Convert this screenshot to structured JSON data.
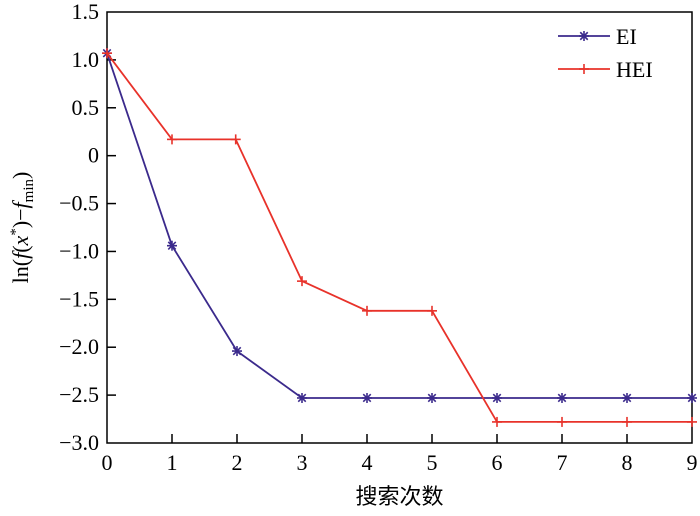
{
  "chart_data": {
    "type": "line",
    "title": "",
    "xlabel": "搜索次数",
    "ylabel": "ln(f(x*)−f_min)",
    "ylabel_parts": {
      "prefix": "ln(",
      "f": "f",
      "open": "(",
      "x": "x",
      "star": "*",
      "close": ")−",
      "fmin": "f",
      "sub": "min",
      "end": ")"
    },
    "xlim": [
      0,
      9
    ],
    "ylim": [
      -3.0,
      1.5
    ],
    "xticks": [
      0,
      1,
      2,
      3,
      4,
      5,
      6,
      7,
      8,
      9
    ],
    "yticks": [
      1.5,
      1.0,
      0.5,
      0,
      -0.5,
      -1.0,
      -1.5,
      -2.0,
      -2.5,
      -3.0
    ],
    "ytick_labels": [
      "1.5",
      "1.0",
      "0.5",
      "0",
      "−0.5",
      "−1.0",
      "−1.5",
      "−2.0",
      "−2.5",
      "−3.0"
    ],
    "grid": false,
    "legend_position": "top-right",
    "series": [
      {
        "name": "EI",
        "color": "#3b2a8c",
        "marker": "asterisk",
        "x": [
          0,
          1,
          2,
          3,
          4,
          5,
          6,
          7,
          8,
          9
        ],
        "values": [
          1.07,
          -0.94,
          -2.04,
          -2.53,
          -2.53,
          -2.53,
          -2.53,
          -2.53,
          -2.53,
          -2.53
        ]
      },
      {
        "name": "HEI",
        "color": "#e8322a",
        "marker": "plus",
        "x": [
          0,
          1,
          1.98,
          3,
          4,
          5,
          6,
          7,
          8,
          9
        ],
        "values": [
          1.07,
          0.17,
          0.17,
          -1.31,
          -1.62,
          -1.62,
          -2.78,
          -2.78,
          -2.78,
          -2.78
        ]
      }
    ]
  }
}
